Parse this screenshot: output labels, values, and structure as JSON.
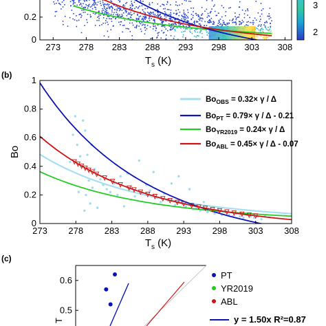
{
  "panels": {
    "b_label": "(b)",
    "c_label": "(c)"
  },
  "colors": {
    "obs": "#a6dff0",
    "pt": "#0a14b4",
    "yr2019": "#22cc22",
    "abl": "#cc1414",
    "scatter_cyan": "#9fdcf0"
  },
  "chart_data": [
    {
      "panel": "a",
      "type": "heatmap",
      "xlabel": "T_s (K)",
      "x_ticks": [
        273,
        278,
        283,
        288,
        293,
        298,
        303,
        308
      ],
      "y_ticks": [
        0,
        0.2
      ],
      "xlim": [
        271,
        309
      ],
      "ylim": [
        0,
        0.35
      ],
      "colorbar_ticks": [
        "3",
        "2"
      ],
      "overlay_lines": [
        {
          "name": "YR2019",
          "color": "#22cc22",
          "func": "0.24*gamma/delta"
        },
        {
          "name": "PT",
          "color": "#0a14b4",
          "func": "0.79*gamma/delta-0.21"
        },
        {
          "name": "ABL",
          "color": "#cc1414",
          "func": "0.45*gamma/delta-0.07"
        }
      ]
    },
    {
      "panel": "b",
      "type": "scatter",
      "xlabel": "T_s (K)",
      "ylabel": "Bo",
      "xlim": [
        273,
        308
      ],
      "ylim": [
        0,
        1
      ],
      "x_ticks": [
        273,
        278,
        283,
        288,
        293,
        298,
        303,
        308
      ],
      "y_ticks": [
        0,
        0.2,
        0.4,
        0.6,
        0.8,
        1
      ],
      "grid": false,
      "legend_position": "top-right",
      "series": [
        {
          "name": "Bo_OBS = 0.32× γ / Δ",
          "kind": "line",
          "coef": 0.32,
          "offset": 0
        },
        {
          "name": "Bo_PT = 0.79× γ / Δ - 0.21",
          "kind": "line",
          "coef": 0.79,
          "offset": -0.21
        },
        {
          "name": "Bo_YR2019 = 0.24× γ / Δ",
          "kind": "line",
          "coef": 0.24,
          "offset": 0
        },
        {
          "name": "Bo_ABL = 0.45× γ / Δ - 0.07",
          "kind": "line",
          "coef": 0.45,
          "offset": -0.07
        }
      ],
      "observations": [
        [
          277.6,
          0.62
        ],
        [
          277.9,
          0.75
        ],
        [
          278.2,
          0.55
        ],
        [
          278.4,
          0.22
        ],
        [
          278.6,
          0.47
        ],
        [
          278.8,
          0.4
        ],
        [
          279.0,
          0.72
        ],
        [
          279.2,
          0.09
        ],
        [
          279.4,
          0.2
        ],
        [
          279.6,
          0.48
        ],
        [
          279.8,
          0.3
        ],
        [
          280.0,
          0.14
        ],
        [
          280.3,
          0.25
        ],
        [
          280.6,
          0.38
        ],
        [
          281.0,
          0.11
        ],
        [
          281.4,
          0.31
        ],
        [
          281.8,
          0.27
        ],
        [
          282.3,
          0.24
        ],
        [
          282.8,
          0.22
        ],
        [
          283.3,
          0.28
        ],
        [
          283.8,
          0.2
        ],
        [
          284.2,
          0.33
        ],
        [
          284.7,
          0.12
        ],
        [
          285.2,
          0.35
        ],
        [
          285.7,
          0.26
        ],
        [
          286.2,
          0.19
        ],
        [
          286.8,
          0.44
        ],
        [
          287.3,
          0.21
        ],
        [
          287.8,
          0.27
        ],
        [
          288.3,
          0.23
        ],
        [
          288.8,
          0.36
        ],
        [
          289.3,
          0.18
        ],
        [
          289.8,
          0.15
        ],
        [
          290.3,
          0.21
        ],
        [
          290.8,
          0.16
        ],
        [
          291.3,
          0.28
        ],
        [
          291.8,
          0.13
        ],
        [
          292.3,
          0.33
        ],
        [
          292.8,
          0.14
        ],
        [
          293.3,
          0.12
        ],
        [
          293.8,
          0.24
        ],
        [
          294.3,
          0.1
        ],
        [
          294.8,
          0.11
        ],
        [
          295.3,
          0.09
        ],
        [
          295.8,
          0.15
        ],
        [
          296.3,
          0.08
        ],
        [
          296.8,
          0.09
        ],
        [
          297.3,
          0.07
        ],
        [
          297.8,
          0.11
        ],
        [
          298.3,
          0.06
        ],
        [
          298.8,
          0.08
        ],
        [
          299.3,
          0.06
        ],
        [
          299.8,
          0.05
        ],
        [
          300.3,
          0.07
        ],
        [
          300.8,
          0.05
        ],
        [
          301.3,
          0.04
        ],
        [
          301.8,
          0.06
        ],
        [
          302.3,
          0.05
        ],
        [
          302.8,
          0.04
        ],
        [
          303.3,
          0.05
        ],
        [
          303.8,
          0.03
        ],
        [
          304.3,
          0.05
        ],
        [
          280.2,
          0.55
        ],
        [
          279.3,
          0.65
        ],
        [
          277.2,
          0.43
        ]
      ],
      "abl_markers_x": [
        277.8,
        278.3,
        278.8,
        279.3,
        279.8,
        280.3,
        280.9,
        282.0,
        283.1,
        284.2,
        285.4,
        286.1,
        287.0,
        288.0,
        289.0,
        290.1,
        291.1,
        292.1,
        293.0,
        294.1,
        295.1,
        296.0,
        297.0,
        298.0,
        299.0,
        300.0,
        301.1,
        302.1,
        303.0
      ]
    },
    {
      "panel": "c",
      "type": "scatter",
      "y_ticks": [
        0.6,
        0.5
      ],
      "ylabel_partial": "T",
      "legend_position": "top-right",
      "series": [
        {
          "name": "PT",
          "color": "#0a14b4",
          "points": [
            [
              0.29,
              0.62
            ],
            [
              0.27,
              0.57
            ],
            [
              0.28,
              0.52
            ]
          ]
        },
        {
          "name": "YR2019",
          "color": "#22cc22",
          "points": []
        },
        {
          "name": "ABL",
          "color": "#cc1414",
          "points": []
        }
      ],
      "fit": {
        "label": "y = 1.50x  R²=0.87"
      }
    }
  ]
}
